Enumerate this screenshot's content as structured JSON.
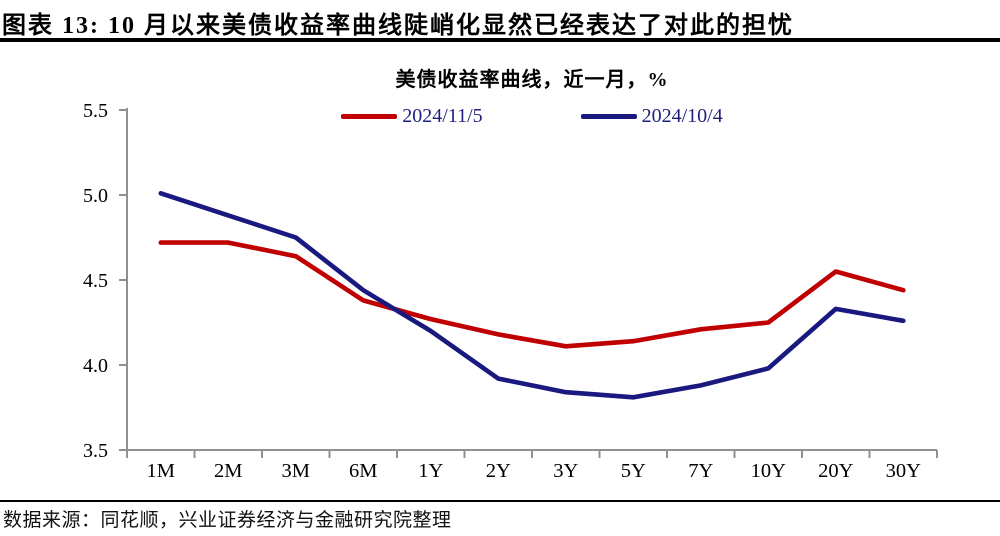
{
  "header": {
    "title": "图表 13: 10 月以来美债收益率曲线陡峭化显然已经表达了对此的担忧"
  },
  "chart_data": {
    "type": "line",
    "title": "美债收益率曲线，近一月，%",
    "categories": [
      "1M",
      "2M",
      "3M",
      "6M",
      "1Y",
      "2Y",
      "3Y",
      "5Y",
      "7Y",
      "10Y",
      "20Y",
      "30Y"
    ],
    "series": [
      {
        "name": "2024/11/5",
        "color": "#C00000",
        "values": [
          4.72,
          4.72,
          4.64,
          4.38,
          4.27,
          4.18,
          4.11,
          4.14,
          4.21,
          4.25,
          4.55,
          4.44
        ]
      },
      {
        "name": "2024/10/4",
        "color": "#191980",
        "values": [
          5.01,
          4.88,
          4.75,
          4.44,
          4.2,
          3.92,
          3.84,
          3.81,
          3.88,
          3.98,
          4.33,
          4.26
        ]
      }
    ],
    "ylim": [
      3.5,
      5.5
    ],
    "yticks": [
      3.5,
      4.0,
      4.5,
      5.0,
      5.5
    ],
    "grid": false,
    "legend_position": "top",
    "axis_color": "#909090"
  },
  "footer": {
    "source": "数据来源：同花顺，兴业证券经济与金融研究院整理"
  },
  "colors": {
    "series_red": "#C00000",
    "series_navy": "#191980",
    "legend_text": "#1F1F7E",
    "axis": "#909090",
    "rule": "#000000"
  }
}
